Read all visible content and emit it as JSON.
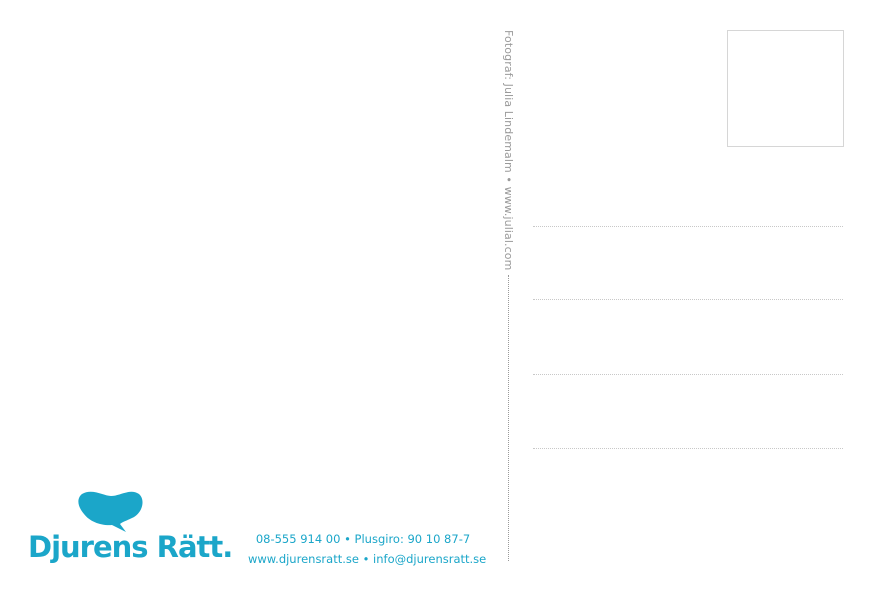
{
  "brand": {
    "name": "Djurens Rätt.",
    "color": "#1ba6c9"
  },
  "photo_credit": "Fotograf: Julia Lindemalm • www.julial.com",
  "contact": {
    "line1": "08-555 914 00 • Plusgiro: 90 10 87-7",
    "line2": "www.djurensratt.se • info@djurensratt.se"
  }
}
